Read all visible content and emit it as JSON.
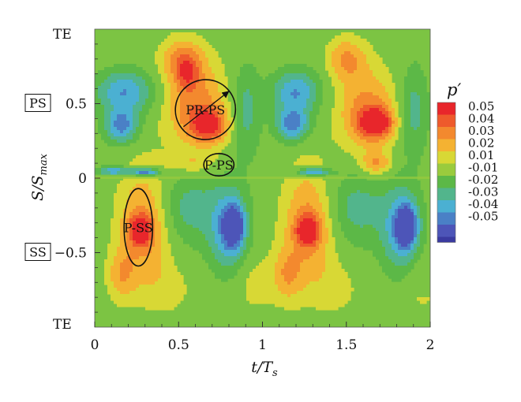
{
  "chart_data": {
    "type": "heatmap",
    "title": "",
    "xlabel": "t/T",
    "xlabel_sub": "s",
    "ylabel": "S/S",
    "ylabel_sub": "max",
    "xlim": [
      0,
      2
    ],
    "ylim": [
      -1,
      1
    ],
    "x_ticks": [
      {
        "value": 0,
        "label": "0"
      },
      {
        "value": 0.5,
        "label": "0.5"
      },
      {
        "value": 1,
        "label": "1"
      },
      {
        "value": 1.5,
        "label": "1.5"
      },
      {
        "value": 2,
        "label": "2"
      }
    ],
    "y_ticks": [
      {
        "value": 0.5,
        "label": "0.5"
      },
      {
        "value": 0,
        "label": "0"
      },
      {
        "value": -0.5,
        "label": "−0.5"
      }
    ],
    "edge_labels": [
      {
        "text": "TE",
        "y": 1
      },
      {
        "text": "TE",
        "y": -1
      }
    ],
    "side_labels": [
      {
        "text": "PS",
        "y": 0.5
      },
      {
        "text": "SS",
        "y": -0.5
      }
    ],
    "colorbar": {
      "title": "p′",
      "levels": [
        {
          "label": "0.05",
          "color": "#e8262b"
        },
        {
          "label": "0.04",
          "color": "#ee5a2c"
        },
        {
          "label": "0.03",
          "color": "#f3892e"
        },
        {
          "label": "0.02",
          "color": "#f4b232"
        },
        {
          "label": "0.01",
          "color": "#d8d835"
        },
        {
          "label": "-0.01",
          "color": "#9acb3d"
        },
        {
          "label": "-0.02",
          "color": "#5cb847"
        },
        {
          "label": "-0.03",
          "color": "#52b58c"
        },
        {
          "label": "-0.04",
          "color": "#4bb0d2"
        },
        {
          "label": "-0.05",
          "color": "#4a80c6"
        },
        {
          "label": "",
          "color": "#4d55b8"
        }
      ],
      "extra_bottom_color": "#3a3aa0"
    },
    "background_color": "#7cc443",
    "annotations": [
      {
        "text": "PR-PS",
        "cx": 0.66,
        "cy": 0.46,
        "rx": 0.18,
        "ry": 0.2,
        "rotate": -38,
        "arrow": true
      },
      {
        "text": "P-PS",
        "cx": 0.74,
        "cy": 0.09,
        "rx": 0.09,
        "ry": 0.075,
        "rotate": 0,
        "arrow": false
      },
      {
        "text": "P-SS",
        "cx": 0.26,
        "cy": -0.33,
        "rx": 0.085,
        "ry": 0.26,
        "rotate": 0,
        "arrow": false
      }
    ],
    "blobs": [
      {
        "x": 0.18,
        "y": 0.58,
        "sx": 0.12,
        "sy": 0.1,
        "v": -0.035
      },
      {
        "x": 0.16,
        "y": 0.35,
        "sx": 0.07,
        "sy": 0.08,
        "v": -0.04
      },
      {
        "x": 0.52,
        "y": 0.8,
        "sx": 0.09,
        "sy": 0.1,
        "v": 0.025
      },
      {
        "x": 0.6,
        "y": 0.5,
        "sx": 0.13,
        "sy": 0.2,
        "v": 0.03
      },
      {
        "x": 0.68,
        "y": 0.35,
        "sx": 0.08,
        "sy": 0.08,
        "v": 0.04
      },
      {
        "x": 0.12,
        "y": 0.05,
        "sx": 0.07,
        "sy": 0.02,
        "v": -0.035
      },
      {
        "x": 0.3,
        "y": 0.04,
        "sx": 0.06,
        "sy": 0.02,
        "v": -0.05
      },
      {
        "x": 0.58,
        "y": 0.1,
        "sx": 0.1,
        "sy": 0.05,
        "v": 0.015
      },
      {
        "x": 0.55,
        "y": 0.7,
        "sx": 0.05,
        "sy": 0.08,
        "v": 0.02
      },
      {
        "x": 0.9,
        "y": 0.45,
        "sx": 0.06,
        "sy": 0.22,
        "v": -0.02
      },
      {
        "x": 1.2,
        "y": 0.58,
        "sx": 0.1,
        "sy": 0.1,
        "v": -0.035
      },
      {
        "x": 1.18,
        "y": 0.36,
        "sx": 0.07,
        "sy": 0.08,
        "v": -0.04
      },
      {
        "x": 1.5,
        "y": 0.8,
        "sx": 0.08,
        "sy": 0.1,
        "v": 0.025
      },
      {
        "x": 1.62,
        "y": 0.45,
        "sx": 0.12,
        "sy": 0.2,
        "v": 0.03
      },
      {
        "x": 1.68,
        "y": 0.37,
        "sx": 0.07,
        "sy": 0.07,
        "v": 0.045
      },
      {
        "x": 1.3,
        "y": 0.04,
        "sx": 0.07,
        "sy": 0.02,
        "v": -0.045
      },
      {
        "x": 1.68,
        "y": 0.1,
        "sx": 0.06,
        "sy": 0.05,
        "v": 0.025
      },
      {
        "x": 1.9,
        "y": 0.45,
        "sx": 0.06,
        "sy": 0.22,
        "v": -0.02
      },
      {
        "x": 0.3,
        "y": -0.32,
        "sx": 0.11,
        "sy": 0.28,
        "v": 0.03
      },
      {
        "x": 0.27,
        "y": -0.35,
        "sx": 0.05,
        "sy": 0.07,
        "v": 0.04
      },
      {
        "x": 0.16,
        "y": -0.65,
        "sx": 0.06,
        "sy": 0.12,
        "v": 0.02
      },
      {
        "x": 0.55,
        "y": -0.2,
        "sx": 0.14,
        "sy": 0.18,
        "v": -0.02
      },
      {
        "x": 0.8,
        "y": -0.35,
        "sx": 0.08,
        "sy": 0.2,
        "v": -0.035
      },
      {
        "x": 0.83,
        "y": -0.32,
        "sx": 0.04,
        "sy": 0.09,
        "v": -0.05
      },
      {
        "x": 0.95,
        "y": -0.7,
        "sx": 0.1,
        "sy": 0.15,
        "v": 0.01
      },
      {
        "x": 1.28,
        "y": -0.32,
        "sx": 0.11,
        "sy": 0.28,
        "v": 0.03
      },
      {
        "x": 1.27,
        "y": -0.35,
        "sx": 0.05,
        "sy": 0.07,
        "v": 0.04
      },
      {
        "x": 1.15,
        "y": -0.65,
        "sx": 0.06,
        "sy": 0.12,
        "v": 0.02
      },
      {
        "x": 1.55,
        "y": -0.2,
        "sx": 0.14,
        "sy": 0.18,
        "v": -0.02
      },
      {
        "x": 1.83,
        "y": -0.35,
        "sx": 0.08,
        "sy": 0.2,
        "v": -0.035
      },
      {
        "x": 1.86,
        "y": -0.32,
        "sx": 0.04,
        "sy": 0.09,
        "v": -0.05
      },
      {
        "x": 1.95,
        "y": -0.7,
        "sx": 0.08,
        "sy": 0.15,
        "v": 0.01
      },
      {
        "x": 0.45,
        "y": -0.75,
        "sx": 0.1,
        "sy": 0.12,
        "v": 0.008
      },
      {
        "x": 1.45,
        "y": -0.75,
        "sx": 0.1,
        "sy": 0.12,
        "v": 0.008
      }
    ]
  }
}
